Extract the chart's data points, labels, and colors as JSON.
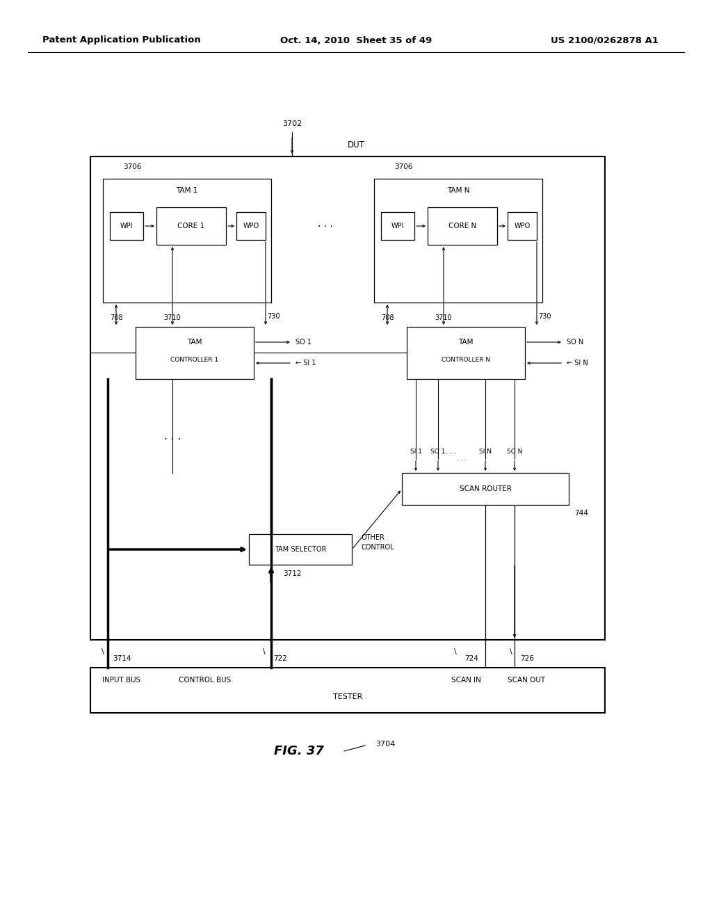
{
  "header_left": "Patent Application Publication",
  "header_mid": "Oct. 14, 2010  Sheet 35 of 49",
  "header_right": "US 2100/0262878 A1",
  "fig_label": "FIG. 37",
  "background": "#ffffff"
}
